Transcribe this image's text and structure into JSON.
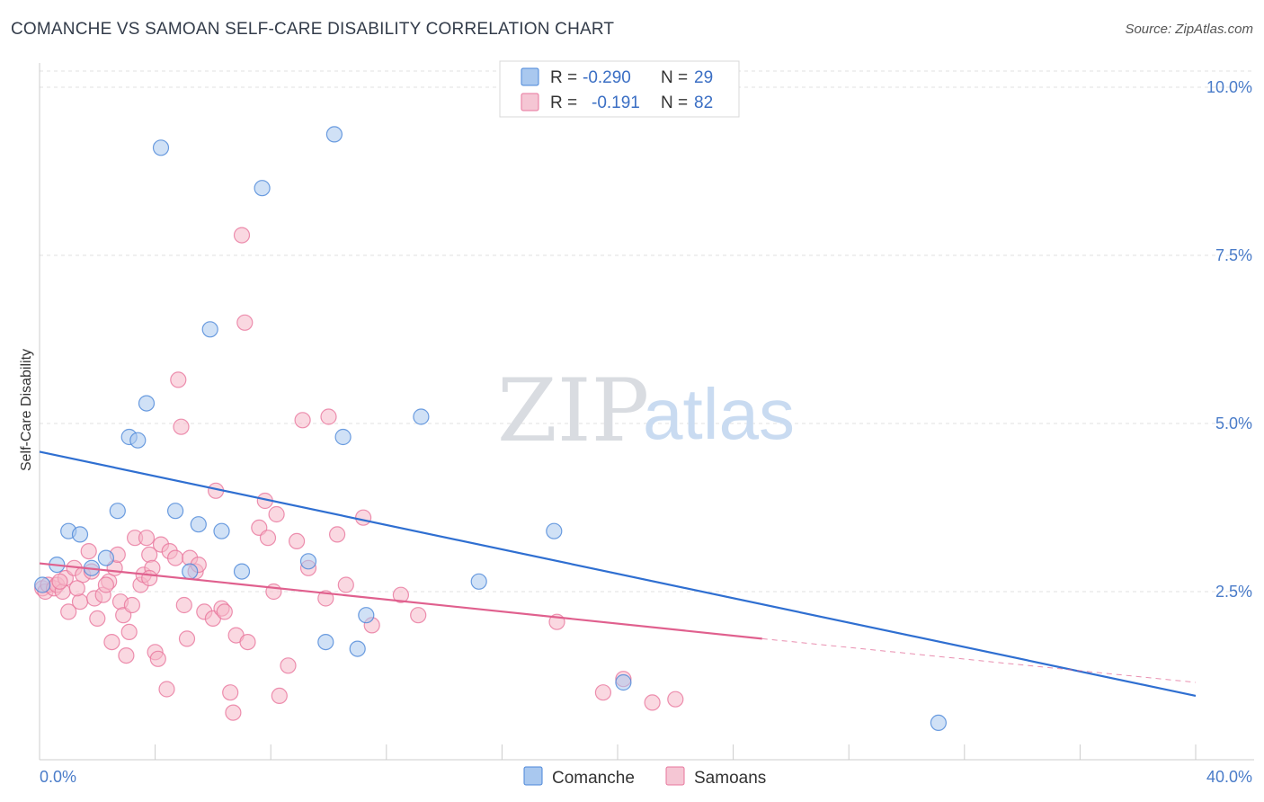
{
  "header": {
    "title": "COMANCHE VS SAMOAN SELF-CARE DISABILITY CORRELATION CHART",
    "source": "Source: ZipAtlas.com"
  },
  "watermark": {
    "zip": "ZIP",
    "atlas": "atlas"
  },
  "legend": {
    "rows": [
      {
        "r_label": "R =",
        "r_value": "-0.290",
        "n_label": "N =",
        "n_value": "29",
        "color": "#a9c8ef"
      },
      {
        "r_label": "R =",
        "r_value": "-0.191",
        "n_label": "N =",
        "n_value": "82",
        "color": "#f5b8c9"
      }
    ]
  },
  "bottom_legend": {
    "items": [
      {
        "label": "Comanche",
        "color": "#a9c8ef"
      },
      {
        "label": "Samoans",
        "color": "#f5b8c9"
      }
    ]
  },
  "chart_data": {
    "type": "scatter",
    "title": "COMANCHE VS SAMOAN SELF-CARE DISABILITY CORRELATION CHART",
    "ylabel": "Self-Care Disability",
    "xlabel": "",
    "xlim": [
      0,
      40
    ],
    "ylim": [
      0,
      10.5
    ],
    "x_tick_labels": [
      "0.0%",
      "40.0%"
    ],
    "y_ticks": [
      2.5,
      5.0,
      7.5,
      10.0
    ],
    "y_tick_labels": [
      "2.5%",
      "5.0%",
      "7.5%",
      "10.0%"
    ],
    "grid": "horizontal dashed",
    "legend_placement": "top-center",
    "colors": {
      "comanche": "#4a86d8",
      "comanche_fill": "#a9c8ef",
      "samoans": "#e8769c",
      "samoans_fill": "#f5b8c9",
      "comanche_line": "#2f6fd1",
      "samoans_line": "#e0608e"
    },
    "series": [
      {
        "name": "Comanche",
        "points": [
          [
            0.1,
            2.6
          ],
          [
            0.6,
            2.9
          ],
          [
            1.0,
            3.4
          ],
          [
            1.4,
            3.35
          ],
          [
            1.8,
            2.85
          ],
          [
            2.3,
            3.0
          ],
          [
            2.7,
            3.7
          ],
          [
            3.1,
            4.8
          ],
          [
            3.4,
            4.75
          ],
          [
            3.7,
            5.3
          ],
          [
            4.2,
            9.1
          ],
          [
            4.7,
            3.7
          ],
          [
            5.2,
            2.8
          ],
          [
            5.5,
            3.5
          ],
          [
            5.9,
            6.4
          ],
          [
            6.3,
            3.4
          ],
          [
            7.0,
            2.8
          ],
          [
            7.7,
            8.5
          ],
          [
            9.3,
            2.95
          ],
          [
            9.9,
            1.75
          ],
          [
            10.2,
            9.3
          ],
          [
            10.5,
            4.8
          ],
          [
            11.0,
            1.65
          ],
          [
            11.3,
            2.15
          ],
          [
            13.2,
            5.1
          ],
          [
            15.2,
            2.65
          ],
          [
            17.8,
            3.4
          ],
          [
            20.2,
            1.15
          ],
          [
            31.1,
            0.55
          ]
        ],
        "trend": {
          "x": [
            0,
            40
          ],
          "y": [
            4.58,
            0.95
          ]
        }
      },
      {
        "name": "Samoans",
        "points": [
          [
            0.1,
            2.55
          ],
          [
            0.2,
            2.5
          ],
          [
            0.3,
            2.6
          ],
          [
            0.5,
            2.55
          ],
          [
            0.6,
            2.6
          ],
          [
            0.8,
            2.5
          ],
          [
            0.9,
            2.7
          ],
          [
            1.0,
            2.2
          ],
          [
            1.2,
            2.85
          ],
          [
            1.4,
            2.35
          ],
          [
            1.5,
            2.75
          ],
          [
            1.7,
            3.1
          ],
          [
            1.8,
            2.8
          ],
          [
            1.9,
            2.4
          ],
          [
            2.0,
            2.1
          ],
          [
            2.2,
            2.45
          ],
          [
            2.4,
            2.65
          ],
          [
            2.5,
            1.75
          ],
          [
            2.6,
            2.85
          ],
          [
            2.7,
            3.05
          ],
          [
            2.8,
            2.35
          ],
          [
            2.9,
            2.15
          ],
          [
            3.0,
            1.55
          ],
          [
            3.1,
            1.9
          ],
          [
            3.2,
            2.3
          ],
          [
            3.3,
            3.3
          ],
          [
            3.5,
            2.6
          ],
          [
            3.6,
            2.75
          ],
          [
            3.7,
            3.3
          ],
          [
            3.8,
            3.05
          ],
          [
            3.9,
            2.85
          ],
          [
            4.0,
            1.6
          ],
          [
            4.1,
            1.5
          ],
          [
            4.2,
            3.2
          ],
          [
            4.4,
            1.05
          ],
          [
            4.5,
            3.1
          ],
          [
            4.7,
            3.0
          ],
          [
            4.8,
            5.65
          ],
          [
            5.0,
            2.3
          ],
          [
            5.1,
            1.8
          ],
          [
            5.2,
            3.0
          ],
          [
            5.4,
            2.8
          ],
          [
            5.5,
            2.9
          ],
          [
            5.7,
            2.2
          ],
          [
            6.0,
            2.1
          ],
          [
            6.1,
            4.0
          ],
          [
            6.3,
            2.25
          ],
          [
            6.6,
            1.0
          ],
          [
            6.7,
            0.7
          ],
          [
            6.8,
            1.85
          ],
          [
            7.0,
            7.8
          ],
          [
            7.1,
            6.5
          ],
          [
            7.2,
            1.75
          ],
          [
            7.6,
            3.45
          ],
          [
            7.8,
            3.85
          ],
          [
            7.9,
            3.3
          ],
          [
            8.1,
            2.5
          ],
          [
            8.2,
            3.65
          ],
          [
            8.3,
            0.95
          ],
          [
            8.6,
            1.4
          ],
          [
            8.9,
            3.25
          ],
          [
            9.1,
            5.05
          ],
          [
            9.3,
            2.85
          ],
          [
            9.9,
            2.4
          ],
          [
            10.0,
            5.1
          ],
          [
            10.3,
            3.35
          ],
          [
            10.6,
            2.6
          ],
          [
            11.2,
            3.6
          ],
          [
            11.5,
            2.0
          ],
          [
            12.5,
            2.45
          ],
          [
            13.1,
            2.15
          ],
          [
            17.9,
            2.05
          ],
          [
            19.5,
            1.0
          ],
          [
            20.2,
            1.2
          ],
          [
            21.2,
            0.85
          ],
          [
            22.0,
            0.9
          ],
          [
            4.9,
            4.95
          ],
          [
            3.8,
            2.7
          ],
          [
            1.3,
            2.55
          ],
          [
            0.7,
            2.65
          ],
          [
            2.3,
            2.6
          ],
          [
            6.4,
            2.2
          ]
        ],
        "trend": {
          "x": [
            0,
            25
          ],
          "y": [
            2.92,
            1.8
          ]
        },
        "trend_extension": {
          "x": [
            25,
            40
          ],
          "y": [
            1.8,
            1.15
          ]
        }
      }
    ]
  }
}
